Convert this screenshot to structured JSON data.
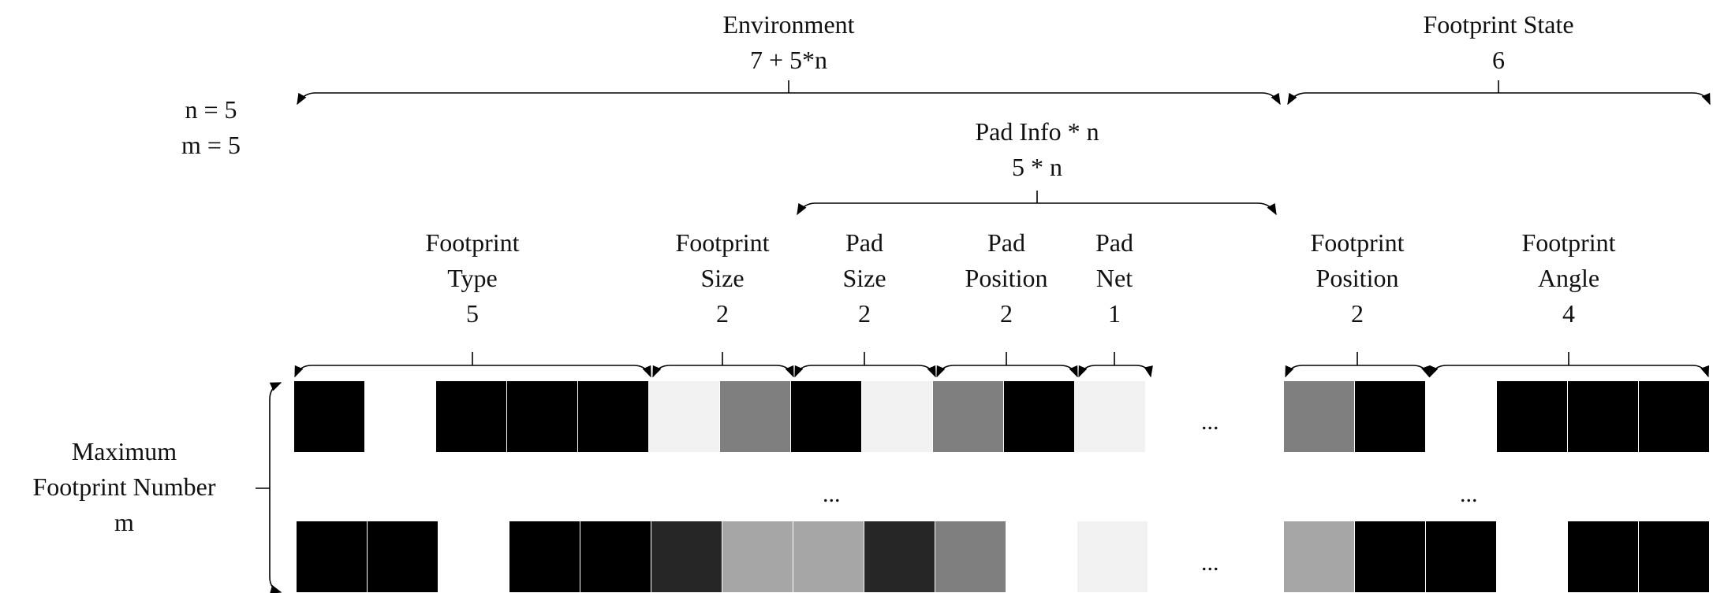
{
  "params": {
    "n_line": "n = 5",
    "m_line": "m = 5"
  },
  "labels": {
    "environment": {
      "title": "Environment",
      "count": "7 + 5*n"
    },
    "footprint_state": {
      "title": "Footprint State",
      "count": "6"
    },
    "pad_info": {
      "title": "Pad Info * n",
      "count": "5 * n"
    },
    "footprint_type": {
      "line1": "Footprint",
      "line2": "Type",
      "count": "5"
    },
    "footprint_size": {
      "line1": "Footprint",
      "line2": "Size",
      "count": "2"
    },
    "pad_size": {
      "line1": "Pad",
      "line2": "Size",
      "count": "2"
    },
    "pad_position": {
      "line1": "Pad",
      "line2": "Position",
      "count": "2"
    },
    "pad_net": {
      "line1": "Pad",
      "line2": "Net",
      "count": "1"
    },
    "footprint_position": {
      "line1": "Footprint",
      "line2": "Position",
      "count": "2"
    },
    "footprint_angle": {
      "line1": "Footprint",
      "line2": "Angle",
      "count": "4"
    },
    "max_footprint": {
      "line1": "Maximum",
      "line2": "Footprint Number",
      "line3": "m"
    }
  },
  "ellipsis": "...",
  "rows": {
    "first": {
      "left": [
        "#000000",
        "#ffffff",
        "#000000",
        "#000000",
        "#000000",
        "#f2f2f2",
        "#7f7f7f",
        "#000000",
        "#f2f2f2",
        "#7f7f7f",
        "#000000",
        "#f2f2f2"
      ],
      "right": [
        "#7f7f7f",
        "#000000",
        "#ffffff",
        "#000000",
        "#000000",
        "#000000"
      ]
    },
    "last": {
      "left": [
        "#000000",
        "#000000",
        "#ffffff",
        "#000000",
        "#000000",
        "#262626",
        "#a6a6a6",
        "#a6a6a6",
        "#262626",
        "#7f7f7f",
        "#ffffff",
        "#f2f2f2"
      ],
      "right": [
        "#a6a6a6",
        "#000000",
        "#000000",
        "#ffffff",
        "#000000",
        "#000000"
      ]
    }
  }
}
